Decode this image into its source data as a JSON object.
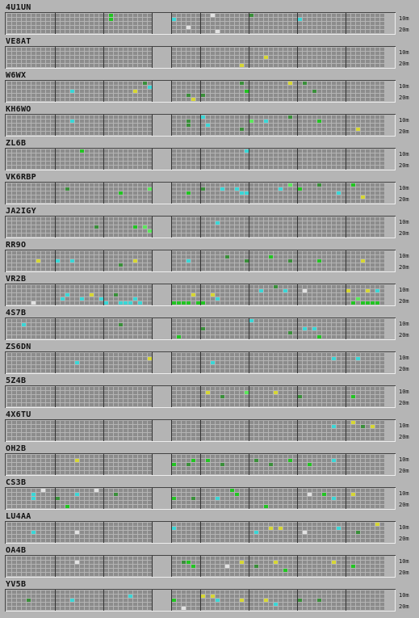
{
  "band_labels": {
    "upper": "10m",
    "lower": "20m"
  },
  "legend": {
    "colors": {
      "empty": "#8c8c8c",
      "lightgreen": "#5ce65c",
      "green": "#22c422",
      "darkgreen": "#3a8f3a",
      "cyan": "#3ad6d6",
      "yellow": "#d6d634",
      "white": "#e2e2e2"
    }
  },
  "stations": [
    {
      "callsign": "4U1UN",
      "marks": [
        [
          21,
          0,
          "green"
        ],
        [
          21,
          1,
          "green"
        ],
        [
          34,
          1,
          "cyan"
        ],
        [
          42,
          0,
          "white"
        ],
        [
          50,
          0,
          "darkgreen"
        ],
        [
          43,
          4,
          "white"
        ],
        [
          37,
          3,
          "white"
        ],
        [
          30,
          2,
          "cyan"
        ],
        [
          60,
          1,
          "cyan"
        ]
      ]
    },
    {
      "callsign": "VE8AT",
      "marks": [
        [
          48,
          4,
          "yellow"
        ],
        [
          53,
          2,
          "yellow"
        ]
      ]
    },
    {
      "callsign": "W6WX",
      "marks": [
        [
          13,
          2,
          "cyan"
        ],
        [
          26,
          2,
          "yellow"
        ],
        [
          29,
          1,
          "cyan"
        ],
        [
          28,
          0,
          "darkgreen"
        ],
        [
          37,
          3,
          "darkgreen"
        ],
        [
          38,
          4,
          "yellow"
        ],
        [
          40,
          3,
          "darkgreen"
        ],
        [
          48,
          0,
          "darkgreen"
        ],
        [
          49,
          2,
          "green"
        ],
        [
          58,
          0,
          "yellow"
        ],
        [
          61,
          0,
          "darkgreen"
        ],
        [
          63,
          2,
          "darkgreen"
        ]
      ]
    },
    {
      "callsign": "KH6WO",
      "marks": [
        [
          13,
          1,
          "cyan"
        ],
        [
          32,
          1,
          "cyan"
        ],
        [
          37,
          1,
          "darkgreen"
        ],
        [
          37,
          2,
          "darkgreen"
        ],
        [
          40,
          0,
          "cyan"
        ],
        [
          41,
          2,
          "cyan"
        ],
        [
          48,
          3,
          "darkgreen"
        ],
        [
          50,
          1,
          "lightgreen"
        ],
        [
          53,
          1,
          "cyan"
        ],
        [
          58,
          0,
          "darkgreen"
        ],
        [
          64,
          1,
          "green"
        ],
        [
          72,
          3,
          "yellow"
        ]
      ]
    },
    {
      "callsign": "ZL6B",
      "marks": [
        [
          15,
          0,
          "green"
        ],
        [
          30,
          2,
          "green"
        ],
        [
          31,
          2,
          "green"
        ],
        [
          49,
          0,
          "cyan"
        ]
      ]
    },
    {
      "callsign": "VK6RBP",
      "marks": [
        [
          12,
          1,
          "darkgreen"
        ],
        [
          23,
          2,
          "green"
        ],
        [
          29,
          1,
          "lightgreen"
        ],
        [
          32,
          0,
          "green"
        ],
        [
          37,
          2,
          "green"
        ],
        [
          40,
          1,
          "darkgreen"
        ],
        [
          44,
          1,
          "cyan"
        ],
        [
          47,
          1,
          "cyan"
        ],
        [
          48,
          2,
          "cyan"
        ],
        [
          49,
          2,
          "cyan"
        ],
        [
          56,
          1,
          "cyan"
        ],
        [
          58,
          0,
          "lightgreen"
        ],
        [
          60,
          1,
          "green"
        ],
        [
          64,
          0,
          "darkgreen"
        ],
        [
          68,
          2,
          "cyan"
        ],
        [
          71,
          0,
          "green"
        ],
        [
          73,
          3,
          "yellow"
        ]
      ]
    },
    {
      "callsign": "JA2IGY",
      "marks": [
        [
          18,
          2,
          "darkgreen"
        ],
        [
          26,
          2,
          "green"
        ],
        [
          28,
          2,
          "lightgreen"
        ],
        [
          29,
          3,
          "lightgreen"
        ],
        [
          30,
          0,
          "green"
        ],
        [
          33,
          3,
          "green"
        ],
        [
          43,
          1,
          "cyan"
        ],
        [
          33,
          4,
          "green"
        ]
      ]
    },
    {
      "callsign": "RR9O",
      "marks": [
        [
          6,
          2,
          "yellow"
        ],
        [
          10,
          2,
          "cyan"
        ],
        [
          13,
          2,
          "cyan"
        ],
        [
          23,
          3,
          "darkgreen"
        ],
        [
          26,
          2,
          "yellow"
        ],
        [
          30,
          2,
          "darkgreen"
        ],
        [
          31,
          2,
          "green"
        ],
        [
          31,
          4,
          "green"
        ],
        [
          37,
          2,
          "cyan"
        ],
        [
          45,
          1,
          "darkgreen"
        ],
        [
          49,
          2,
          "darkgreen"
        ],
        [
          54,
          1,
          "green"
        ],
        [
          58,
          2,
          "darkgreen"
        ],
        [
          64,
          2,
          "green"
        ],
        [
          73,
          2,
          "yellow"
        ]
      ]
    },
    {
      "callsign": "VR2B",
      "marks": [
        [
          5,
          4,
          "white"
        ],
        [
          11,
          3,
          "cyan"
        ],
        [
          12,
          2,
          "cyan"
        ],
        [
          15,
          3,
          "cyan"
        ],
        [
          17,
          2,
          "yellow"
        ],
        [
          19,
          3,
          "cyan"
        ],
        [
          20,
          4,
          "cyan"
        ],
        [
          22,
          2,
          "darkgreen"
        ],
        [
          23,
          4,
          "cyan"
        ],
        [
          24,
          4,
          "cyan"
        ],
        [
          25,
          4,
          "cyan"
        ],
        [
          26,
          3,
          "cyan"
        ],
        [
          27,
          4,
          "cyan"
        ],
        [
          34,
          4,
          "green"
        ],
        [
          35,
          4,
          "green"
        ],
        [
          36,
          4,
          "green"
        ],
        [
          37,
          4,
          "green"
        ],
        [
          38,
          2,
          "yellow"
        ],
        [
          39,
          4,
          "green"
        ],
        [
          40,
          4,
          "green"
        ],
        [
          42,
          2,
          "yellow"
        ],
        [
          43,
          3,
          "cyan"
        ],
        [
          52,
          1,
          "cyan"
        ],
        [
          55,
          0,
          "darkgreen"
        ],
        [
          57,
          1,
          "cyan"
        ],
        [
          61,
          1,
          "white"
        ],
        [
          70,
          1,
          "yellow"
        ],
        [
          71,
          4,
          "green"
        ],
        [
          72,
          3,
          "lightgreen"
        ],
        [
          73,
          4,
          "green"
        ],
        [
          74,
          4,
          "green"
        ],
        [
          75,
          4,
          "green"
        ],
        [
          76,
          4,
          "green"
        ],
        [
          74,
          1,
          "yellow"
        ],
        [
          76,
          1,
          "cyan"
        ]
      ]
    },
    {
      "callsign": "4S7B",
      "marks": [
        [
          3,
          1,
          "cyan"
        ],
        [
          23,
          1,
          "darkgreen"
        ],
        [
          35,
          4,
          "green"
        ],
        [
          40,
          2,
          "darkgreen"
        ],
        [
          50,
          0,
          "cyan"
        ],
        [
          58,
          3,
          "darkgreen"
        ],
        [
          61,
          2,
          "cyan"
        ],
        [
          63,
          2,
          "cyan"
        ],
        [
          64,
          4,
          "green"
        ]
      ]
    },
    {
      "callsign": "ZS6DN",
      "marks": [
        [
          14,
          2,
          "cyan"
        ],
        [
          29,
          1,
          "yellow"
        ],
        [
          42,
          2,
          "cyan"
        ],
        [
          67,
          1,
          "cyan"
        ],
        [
          72,
          1,
          "cyan"
        ]
      ]
    },
    {
      "callsign": "5Z4B",
      "marks": [
        [
          41,
          1,
          "yellow"
        ],
        [
          44,
          2,
          "darkgreen"
        ],
        [
          49,
          1,
          "lightgreen"
        ],
        [
          55,
          1,
          "yellow"
        ],
        [
          60,
          2,
          "darkgreen"
        ],
        [
          71,
          2,
          "green"
        ]
      ]
    },
    {
      "callsign": "4X6TU",
      "marks": [
        [
          67,
          1,
          "cyan"
        ],
        [
          71,
          0,
          "yellow"
        ],
        [
          73,
          1,
          "darkgreen"
        ],
        [
          75,
          1,
          "yellow"
        ]
      ]
    },
    {
      "callsign": "OH2B",
      "marks": [
        [
          14,
          1,
          "yellow"
        ],
        [
          34,
          2,
          "green"
        ],
        [
          37,
          2,
          "darkgreen"
        ],
        [
          38,
          1,
          "green"
        ],
        [
          41,
          1,
          "green"
        ],
        [
          44,
          2,
          "darkgreen"
        ],
        [
          51,
          1,
          "darkgreen"
        ],
        [
          54,
          2,
          "darkgreen"
        ],
        [
          58,
          1,
          "green"
        ],
        [
          62,
          2,
          "green"
        ],
        [
          67,
          1,
          "cyan"
        ]
      ]
    },
    {
      "callsign": "CS3B",
      "marks": [
        [
          5,
          1,
          "cyan"
        ],
        [
          5,
          2,
          "cyan"
        ],
        [
          7,
          0,
          "white"
        ],
        [
          10,
          2,
          "darkgreen"
        ],
        [
          12,
          4,
          "green"
        ],
        [
          14,
          1,
          "cyan"
        ],
        [
          18,
          0,
          "white"
        ],
        [
          22,
          1,
          "darkgreen"
        ],
        [
          34,
          2,
          "green"
        ],
        [
          38,
          2,
          "darkgreen"
        ],
        [
          43,
          2,
          "cyan"
        ],
        [
          46,
          0,
          "green"
        ],
        [
          47,
          1,
          "green"
        ],
        [
          53,
          4,
          "green"
        ],
        [
          62,
          1,
          "white"
        ],
        [
          65,
          1,
          "green"
        ],
        [
          67,
          2,
          "cyan"
        ],
        [
          71,
          1,
          "yellow"
        ]
      ]
    },
    {
      "callsign": "LU4AA",
      "marks": [
        [
          5,
          2,
          "cyan"
        ],
        [
          14,
          2,
          "white"
        ],
        [
          32,
          1,
          "cyan"
        ],
        [
          34,
          1,
          "cyan"
        ],
        [
          51,
          2,
          "cyan"
        ],
        [
          54,
          1,
          "yellow"
        ],
        [
          61,
          2,
          "white"
        ],
        [
          68,
          1,
          "cyan"
        ],
        [
          76,
          0,
          "yellow"
        ],
        [
          56,
          1,
          "yellow"
        ],
        [
          72,
          2,
          "darkgreen"
        ]
      ]
    },
    {
      "callsign": "OA4B",
      "marks": [
        [
          14,
          1,
          "white"
        ],
        [
          36,
          1,
          "darkgreen"
        ],
        [
          37,
          1,
          "green"
        ],
        [
          38,
          2,
          "green"
        ],
        [
          45,
          2,
          "white"
        ],
        [
          48,
          1,
          "yellow"
        ],
        [
          51,
          2,
          "darkgreen"
        ],
        [
          55,
          1,
          "yellow"
        ],
        [
          57,
          3,
          "green"
        ],
        [
          67,
          1,
          "yellow"
        ],
        [
          71,
          2,
          "green"
        ]
      ]
    },
    {
      "callsign": "YV5B",
      "marks": [
        [
          4,
          2,
          "darkgreen"
        ],
        [
          13,
          2,
          "cyan"
        ],
        [
          25,
          1,
          "cyan"
        ],
        [
          34,
          2,
          "green"
        ],
        [
          36,
          4,
          "white"
        ],
        [
          40,
          1,
          "yellow"
        ],
        [
          42,
          1,
          "yellow"
        ],
        [
          43,
          2,
          "cyan"
        ],
        [
          48,
          2,
          "yellow"
        ],
        [
          53,
          2,
          "yellow"
        ],
        [
          55,
          3,
          "cyan"
        ],
        [
          60,
          2,
          "darkgreen"
        ],
        [
          64,
          2,
          "darkgreen"
        ]
      ]
    }
  ]
}
